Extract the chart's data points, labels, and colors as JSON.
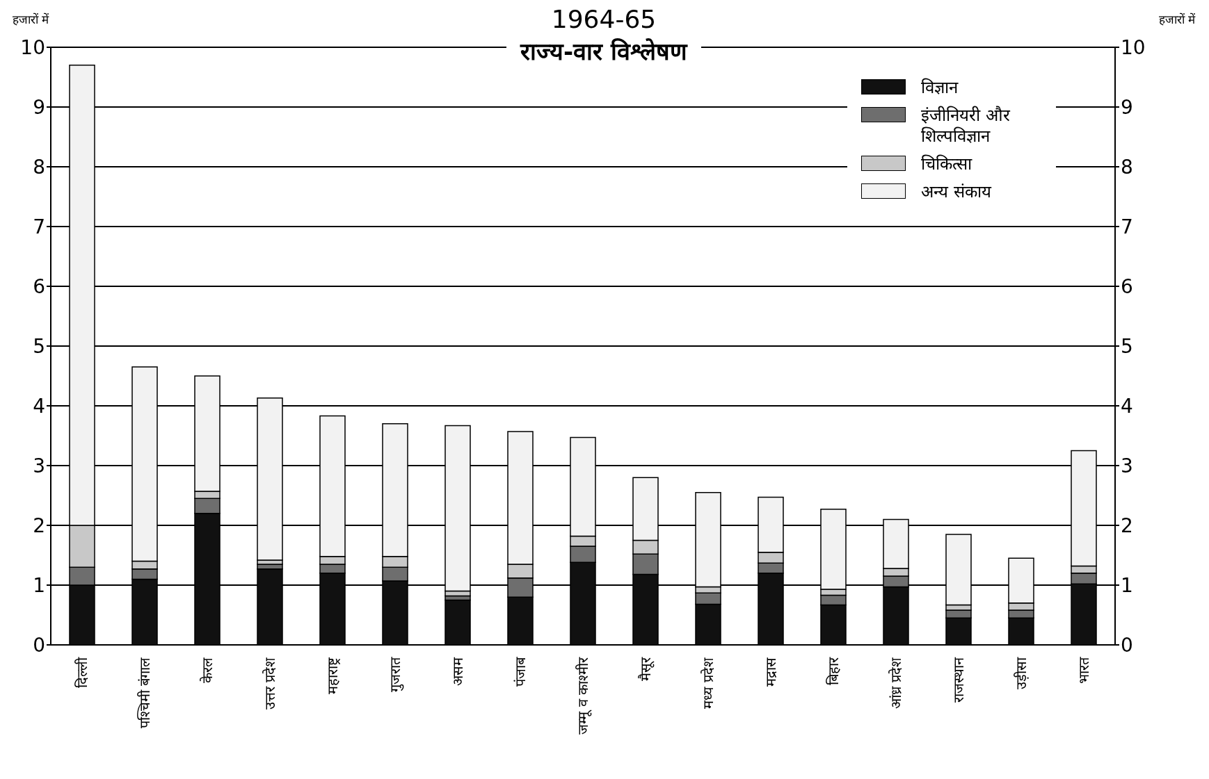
{
  "chart_data": {
    "type": "bar",
    "title": "1964-65",
    "subtitle": "राज्य-वार विश्लेषण",
    "ylabel": "हजारों में",
    "y2label": "हजारों में",
    "categories": [
      "दिल्ली",
      "पश्चिमी बंगाल",
      "केरल",
      "उत्तर प्रदेश",
      "महाराष्ट्र",
      "गुजरात",
      "असम",
      "पंजाब",
      "जम्मू व काश्मीर",
      "मैसूर",
      "मध्य प्रदेश",
      "मद्रास",
      "बिहार",
      "आंध्र प्रदेश",
      "राजस्थान",
      "उड़ीसा",
      "भारत"
    ],
    "stacked": true,
    "series": [
      {
        "name": "विज्ञान",
        "color": "#111111",
        "values": [
          1.0,
          1.1,
          2.2,
          1.27,
          1.2,
          1.07,
          0.75,
          0.8,
          1.38,
          1.18,
          0.68,
          1.2,
          0.67,
          0.97,
          0.45,
          0.45,
          1.02
        ]
      },
      {
        "name": "इंजीनियरी और शिल्पविज्ञान",
        "color": "#6e6e6e",
        "values": [
          0.3,
          0.17,
          0.25,
          0.08,
          0.15,
          0.23,
          0.07,
          0.32,
          0.27,
          0.34,
          0.19,
          0.17,
          0.16,
          0.18,
          0.13,
          0.13,
          0.18
        ]
      },
      {
        "name": "चिकित्सा",
        "color": "#c8c8c8",
        "values": [
          0.7,
          0.13,
          0.12,
          0.07,
          0.13,
          0.18,
          0.08,
          0.23,
          0.17,
          0.23,
          0.1,
          0.18,
          0.1,
          0.13,
          0.09,
          0.12,
          0.12
        ]
      },
      {
        "name": "अन्य संकाय",
        "color": "#f2f2f2",
        "values": [
          7.7,
          3.25,
          1.93,
          2.71,
          2.35,
          2.22,
          2.77,
          2.22,
          1.65,
          1.05,
          1.58,
          0.92,
          1.34,
          0.82,
          1.18,
          0.75,
          1.93
        ]
      }
    ],
    "ylim": [
      0,
      10
    ],
    "yticks": [
      0,
      1,
      2,
      3,
      4,
      5,
      6,
      7,
      8,
      9,
      10
    ],
    "y2lim": [
      0,
      10
    ],
    "y2ticks": [
      0,
      1,
      2,
      3,
      4,
      5,
      6,
      7,
      8,
      9,
      10
    ],
    "grid": "y",
    "legend": "top right"
  }
}
